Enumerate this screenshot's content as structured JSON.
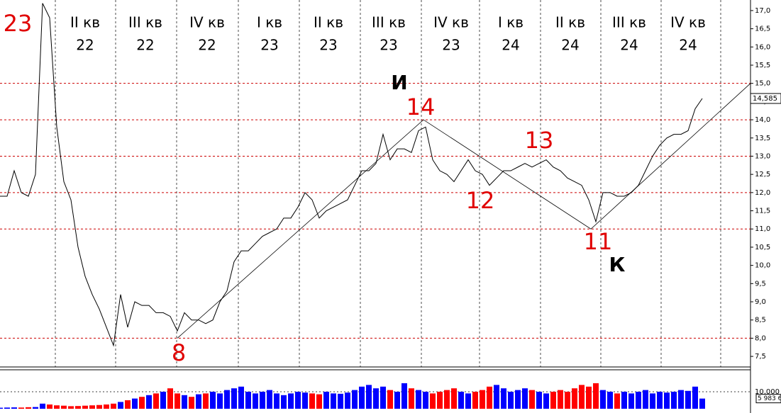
{
  "chart_data": {
    "type": "line",
    "color": "#000000",
    "xlim": [
      0,
      105.8
    ],
    "ylim": [
      7.21,
      17.29
    ],
    "values": [
      11.9,
      11.9,
      12.6,
      12.0,
      11.9,
      12.5,
      17.2,
      16.8,
      13.8,
      12.3,
      11.8,
      10.5,
      9.7,
      9.2,
      8.8,
      8.3,
      7.8,
      9.2,
      8.3,
      9.0,
      8.9,
      8.9,
      8.7,
      8.7,
      8.6,
      8.2,
      8.7,
      8.5,
      8.5,
      8.4,
      8.5,
      9.0,
      9.3,
      10.1,
      10.4,
      10.4,
      10.6,
      10.8,
      10.9,
      11.0,
      11.3,
      11.3,
      11.6,
      12.0,
      11.8,
      11.3,
      11.5,
      11.6,
      11.7,
      11.8,
      12.2,
      12.6,
      12.6,
      12.8,
      13.6,
      12.9,
      13.2,
      13.2,
      13.1,
      13.7,
      13.8,
      12.9,
      12.6,
      12.5,
      12.3,
      12.6,
      12.9,
      12.6,
      12.5,
      12.2,
      12.4,
      12.6,
      12.6,
      12.7,
      12.8,
      12.7,
      12.8,
      12.9,
      12.7,
      12.6,
      12.4,
      12.3,
      12.2,
      11.8,
      11.2,
      12.0,
      12.0,
      11.9,
      11.9,
      12.0,
      12.2,
      12.6,
      13.0,
      13.3,
      13.5,
      13.6,
      13.6,
      13.7,
      14.3,
      14.585
    ],
    "yticks": [
      {
        "value": 7.5,
        "label": "7,5"
      },
      {
        "value": 8,
        "label": "8,0"
      },
      {
        "value": 8.5,
        "label": "8,5"
      },
      {
        "value": 9,
        "label": "9,0"
      },
      {
        "value": 9.5,
        "label": "9,5"
      },
      {
        "value": 10,
        "label": "10,0"
      },
      {
        "value": 10.5,
        "label": "10,5"
      },
      {
        "value": 11,
        "label": "11,0"
      },
      {
        "value": 11.5,
        "label": "11,5"
      },
      {
        "value": 12,
        "label": "12,0"
      },
      {
        "value": 12.5,
        "label": "12,5"
      },
      {
        "value": 13,
        "label": "13,0"
      },
      {
        "value": 13.5,
        "label": "13,5"
      },
      {
        "value": 14,
        "label": "14,0"
      },
      {
        "value": 14.5,
        "label": "14,5"
      },
      {
        "value": 15,
        "label": "15,0"
      },
      {
        "value": 15.5,
        "label": "15,5"
      },
      {
        "value": 16,
        "label": "16,0"
      },
      {
        "value": 16.5,
        "label": "16,5"
      },
      {
        "value": 17,
        "label": "17,0"
      }
    ],
    "last_price": {
      "value": 14.585,
      "label": "14,585"
    },
    "levels": [
      8,
      11,
      12,
      13,
      14,
      15
    ],
    "level_color": "#cc0000",
    "trendline": {
      "x": [
        25,
        59.7,
        83.3,
        105.8
      ],
      "y": [
        8.0,
        14.0,
        11.0,
        15.0
      ]
    },
    "quarters": [
      {
        "quarter": "II кв",
        "year": "22"
      },
      {
        "quarter": "III кв",
        "year": "22"
      },
      {
        "quarter": "IV кв",
        "year": "22"
      },
      {
        "quarter": "I кв",
        "year": "23"
      },
      {
        "quarter": "II кв",
        "year": "23"
      },
      {
        "quarter": "III кв",
        "year": "23"
      },
      {
        "quarter": "IV кв",
        "year": "23"
      },
      {
        "quarter": "I кв",
        "year": "24"
      },
      {
        "quarter": "II кв",
        "year": "24"
      },
      {
        "quarter": "III кв",
        "year": "24"
      },
      {
        "quarter": "IV кв",
        "year": "24"
      }
    ],
    "wave_labels": [
      "23",
      "14",
      "12",
      "13",
      "8",
      "11"
    ],
    "letters": [
      "И",
      "К"
    ],
    "volume": {
      "up_color": "#0000ff",
      "down_color": "#ff0000",
      "ylim": [
        0,
        22900
      ],
      "yticks": [
        {
          "value": 10000,
          "label": "10,000"
        }
      ],
      "last": {
        "value": 5983.6,
        "label": "5 983 6"
      },
      "values": [
        600,
        700,
        800,
        700,
        900,
        1000,
        3000,
        2500,
        2000,
        1800,
        1500,
        1600,
        1800,
        2000,
        2200,
        2500,
        3000,
        4000,
        5000,
        6000,
        7000,
        8000,
        9000,
        10000,
        12000,
        9000,
        8000,
        7000,
        8500,
        9000,
        10000,
        9000,
        11000,
        12000,
        13000,
        10000,
        9000,
        10000,
        11000,
        9000,
        8000,
        9000,
        10000,
        9500,
        9000,
        8500,
        10000,
        9000,
        8800,
        9500,
        11000,
        13000,
        14000,
        12000,
        13000,
        11000,
        10000,
        15000,
        12000,
        11000,
        10000,
        9000,
        10000,
        11000,
        12000,
        10000,
        9000,
        10000,
        11000,
        13000,
        14000,
        12000,
        10000,
        11000,
        12000,
        11000,
        10000,
        9000,
        10000,
        11000,
        10000,
        12000,
        14000,
        13000,
        15000,
        11000,
        10000,
        9000,
        10000,
        9000,
        10000,
        11000,
        9000,
        10000,
        9500,
        10000,
        11000,
        10500,
        13000,
        5983.6
      ]
    }
  }
}
